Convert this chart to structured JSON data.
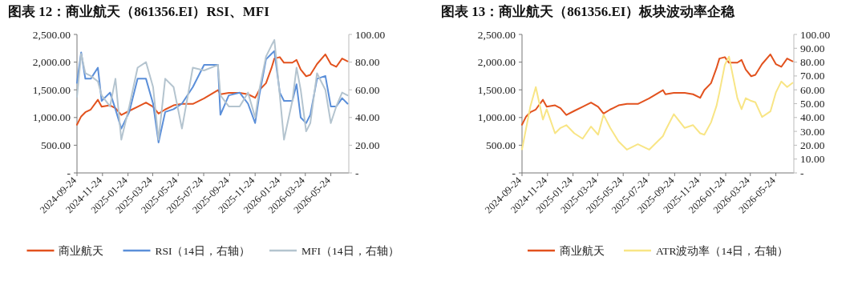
{
  "chart_data": [
    {
      "type": "line",
      "title": "图表 12：商业航天（861356.EI）RSI、MFI",
      "legend": "bottom",
      "x": [
        "2024-09-24",
        "2024-10-04",
        "2024-10-14",
        "2024-10-27",
        "2024-11-13",
        "2024-11-22",
        "2024-12-12",
        "2024-12-25",
        "2025-01-08",
        "2025-01-27",
        "2025-02-16",
        "2025-03-08",
        "2025-03-25",
        "2025-04-07",
        "2025-04-23",
        "2025-05-13",
        "2025-06-02",
        "2025-06-28",
        "2025-07-25",
        "2025-08-27",
        "2025-09-02",
        "2025-09-22",
        "2025-10-18",
        "2025-11-07",
        "2025-11-24",
        "2025-12-04",
        "2025-12-20",
        "2026-01-02",
        "2026-01-09",
        "2026-01-22",
        "2026-02-01",
        "2026-02-21",
        "2026-03-03",
        "2026-03-13",
        "2026-03-26",
        "2026-04-05",
        "2026-04-21",
        "2026-05-11",
        "2026-05-24",
        "2026-06-06",
        "2026-06-20",
        "2026-07-03"
      ],
      "xlim": [
        "2024-09-24",
        "2026-07-06"
      ],
      "xticks": [
        "2024-09-24",
        "2024-11-24",
        "2025-01-24",
        "2025-03-24",
        "2025-05-24",
        "2025-07-24",
        "2025-09-24",
        "2025-11-24",
        "2026-01-24",
        "2026-03-24",
        "2026-05-24"
      ],
      "ylim": [
        0,
        2500
      ],
      "yticks": [
        {
          "value": 0,
          "label": "-"
        },
        {
          "value": 500,
          "label": "500.00"
        },
        {
          "value": 1000,
          "label": "1,000.00"
        },
        {
          "value": 1500,
          "label": "1,500.00"
        },
        {
          "value": 2000,
          "label": "2,000.00"
        },
        {
          "value": 2500,
          "label": "2,500.00"
        }
      ],
      "y2lim": [
        0,
        100
      ],
      "y2ticks": [
        {
          "value": 0,
          "label": "-"
        },
        {
          "value": 20,
          "label": "20.00"
        },
        {
          "value": 40,
          "label": "40.00"
        },
        {
          "value": 60,
          "label": "60.00"
        },
        {
          "value": 80,
          "label": "80.00"
        },
        {
          "value": 100,
          "label": "100.00"
        }
      ],
      "series": [
        {
          "name": "商业航天",
          "color": "#e2521e",
          "values": [
            870,
            1020,
            1095,
            1145,
            1320,
            1195,
            1220,
            1170,
            1045,
            1120,
            1195,
            1270,
            1195,
            1070,
            1145,
            1220,
            1245,
            1245,
            1345,
            1495,
            1420,
            1445,
            1445,
            1420,
            1355,
            1495,
            1620,
            1890,
            2065,
            2090,
            1990,
            1990,
            2040,
            1865,
            1745,
            1770,
            1965,
            2140,
            1965,
            1915,
            2065,
            2015
          ]
        },
        {
          "name": "RSI（14日，右轴）",
          "color": "#5b8fd9",
          "axis": "y2",
          "values": [
            65,
            87,
            68,
            68,
            76,
            52,
            58,
            46,
            32,
            44,
            68,
            68,
            50,
            22,
            44,
            46,
            50,
            62,
            78,
            78,
            42,
            56,
            58,
            50,
            36,
            56,
            82,
            86,
            88,
            58,
            52,
            52,
            64,
            40,
            36,
            42,
            68,
            70,
            48,
            48,
            54,
            50
          ]
        },
        {
          "name": "MFI（14日，右轴）",
          "color": "#b4c4cf",
          "axis": "y2",
          "values": [
            55,
            86,
            72,
            70,
            66,
            56,
            48,
            68,
            24,
            48,
            76,
            80,
            62,
            24,
            68,
            62,
            32,
            76,
            74,
            78,
            56,
            48,
            48,
            58,
            40,
            60,
            84,
            92,
            96,
            56,
            24,
            52,
            76,
            60,
            30,
            36,
            72,
            60,
            36,
            48,
            58,
            56
          ]
        }
      ]
    },
    {
      "type": "line",
      "title": "图表 13：商业航天（861356.EI）板块波动率企稳",
      "legend": "bottom",
      "x": [
        "2024-09-24",
        "2024-10-04",
        "2024-10-14",
        "2024-10-27",
        "2024-11-13",
        "2024-11-22",
        "2024-12-12",
        "2024-12-25",
        "2025-01-08",
        "2025-01-27",
        "2025-02-16",
        "2025-03-08",
        "2025-03-25",
        "2025-04-07",
        "2025-04-23",
        "2025-05-13",
        "2025-06-02",
        "2025-06-28",
        "2025-07-25",
        "2025-08-27",
        "2025-09-02",
        "2025-09-22",
        "2025-10-18",
        "2025-11-07",
        "2025-11-24",
        "2025-12-04",
        "2025-12-20",
        "2026-01-02",
        "2026-01-09",
        "2026-01-22",
        "2026-02-01",
        "2026-02-21",
        "2026-03-03",
        "2026-03-13",
        "2026-03-26",
        "2026-04-05",
        "2026-04-21",
        "2026-05-11",
        "2026-05-24",
        "2026-06-06",
        "2026-06-20",
        "2026-07-03"
      ],
      "xlim": [
        "2024-09-24",
        "2026-07-06"
      ],
      "xticks": [
        "2024-09-24",
        "2024-11-24",
        "2025-01-24",
        "2025-03-24",
        "2025-05-24",
        "2025-07-24",
        "2025-09-24",
        "2025-11-24",
        "2026-01-24",
        "2026-03-24",
        "2026-05-24"
      ],
      "ylim": [
        0,
        2500
      ],
      "yticks": [
        {
          "value": 0,
          "label": "-"
        },
        {
          "value": 500,
          "label": "500.00"
        },
        {
          "value": 1000,
          "label": "1,000.00"
        },
        {
          "value": 1500,
          "label": "1,500.00"
        },
        {
          "value": 2000,
          "label": "2,000.00"
        },
        {
          "value": 2500,
          "label": "2,500.00"
        }
      ],
      "y2lim": [
        0,
        100
      ],
      "y2ticks": [
        {
          "value": 0,
          "label": "-"
        },
        {
          "value": 10,
          "label": "10.00"
        },
        {
          "value": 20,
          "label": "20.00"
        },
        {
          "value": 30,
          "label": "30.00"
        },
        {
          "value": 40,
          "label": "40.00"
        },
        {
          "value": 50,
          "label": "50.00"
        },
        {
          "value": 60,
          "label": "60.00"
        },
        {
          "value": 70,
          "label": "70.00"
        },
        {
          "value": 80,
          "label": "80.00"
        },
        {
          "value": 90,
          "label": "90.00"
        },
        {
          "value": 100,
          "label": "100.00"
        }
      ],
      "series": [
        {
          "name": "商业航天",
          "color": "#e2521e",
          "values": [
            870,
            1020,
            1095,
            1145,
            1320,
            1195,
            1220,
            1170,
            1045,
            1120,
            1195,
            1270,
            1195,
            1070,
            1145,
            1220,
            1245,
            1245,
            1345,
            1495,
            1420,
            1445,
            1445,
            1420,
            1355,
            1495,
            1620,
            1890,
            2065,
            2090,
            1990,
            1990,
            2040,
            1865,
            1745,
            1770,
            1965,
            2140,
            1965,
            1915,
            2065,
            2015
          ]
        },
        {
          "name": "ATR波动率（14日，右轴）",
          "color": "#f8e585",
          "axis": "y2",
          "values": [
            17,
            32.5,
            48,
            62,
            38.5,
            46,
            28.6,
            32.5,
            34.5,
            28.6,
            24.7,
            33.5,
            27.6,
            42,
            32.5,
            22.7,
            16.8,
            20.7,
            16.8,
            26.6,
            30.6,
            42.4,
            32.5,
            34.5,
            28.6,
            27.6,
            36.5,
            48.3,
            58,
            78,
            84,
            54,
            46,
            54,
            52,
            51,
            40.4,
            44.4,
            58,
            66,
            62,
            65
          ]
        }
      ]
    }
  ]
}
